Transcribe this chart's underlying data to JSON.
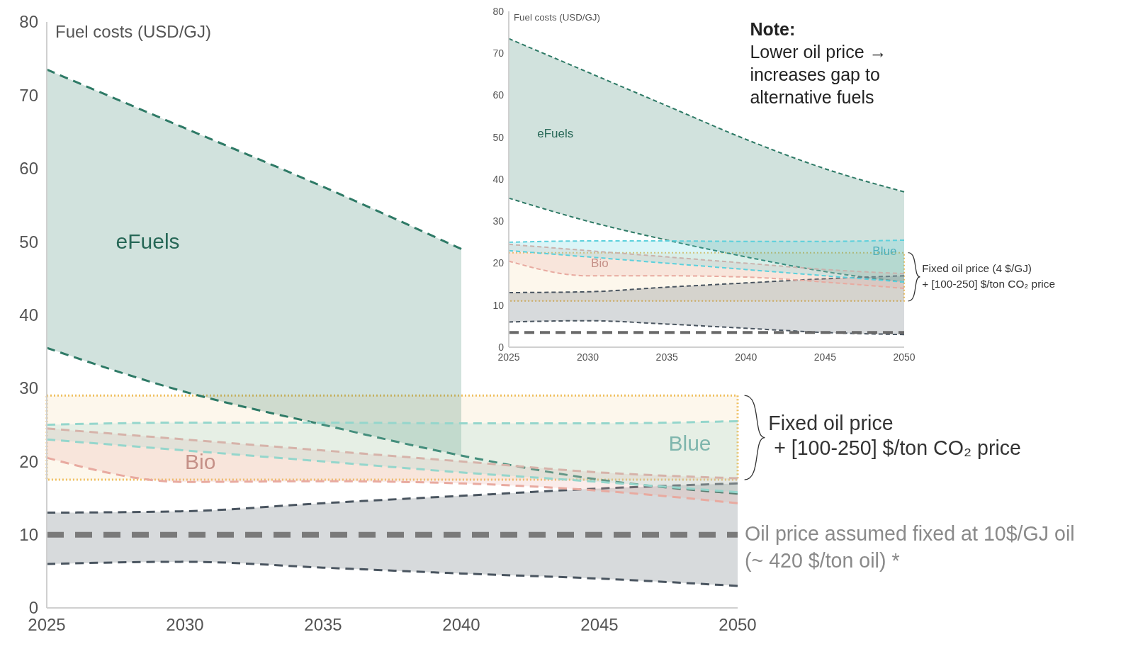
{
  "chart_data": [
    {
      "type": "line",
      "ylabel": "Fuel costs (USD/GJ)",
      "x": [
        2025,
        2030,
        2035,
        2040,
        2045,
        2050
      ],
      "xlim": [
        2025,
        2050
      ],
      "xticks": [
        2025,
        2030,
        2035,
        2040,
        2045,
        2050
      ],
      "ylim": [
        0,
        80
      ],
      "yticks": [
        0,
        10,
        20,
        30,
        40,
        50,
        60,
        70,
        80
      ],
      "line_style": "dashed",
      "series": [
        {
          "name": "eFuels",
          "color": "#2e7a66",
          "values": [
            73.5,
            65.5,
            57.5,
            49,
            null,
            null
          ],
          "lower": [
            35.5,
            29.5,
            25,
            20.8,
            null,
            null
          ],
          "upper": [
            73.5,
            65.5,
            57.5,
            49,
            null,
            null
          ]
        },
        {
          "color": "#2e7a66",
          "values": [
            35.5,
            29.5,
            25,
            20.8,
            17.5,
            15.6
          ]
        },
        {
          "color": "#4a5560",
          "values": [
            13,
            13.2,
            14.3,
            15.3,
            16.3,
            17
          ],
          "lower": [
            6,
            6.3,
            5.5,
            4.7,
            4,
            3
          ],
          "upper": [
            13,
            13.2,
            14.3,
            15.3,
            16.3,
            17
          ]
        },
        {
          "color": "#4a5560",
          "values": [
            6,
            6.3,
            5.5,
            4.7,
            4,
            3
          ]
        },
        {
          "name": "Bio",
          "color": "#e8aaa0",
          "values": [
            24.5,
            23,
            21.5,
            20,
            18.5,
            17.7
          ],
          "lower": [
            20.5,
            17.2,
            17.3,
            17,
            16,
            14.3
          ],
          "upper": [
            24.5,
            23,
            21.5,
            20,
            18.5,
            17.7
          ]
        },
        {
          "color": "#e8aaa0",
          "values": [
            20.5,
            17.2,
            17.3,
            17,
            16,
            14.3
          ]
        },
        {
          "name": "Blue",
          "color": "#95d6cc",
          "values": [
            25,
            25.3,
            25.3,
            25.2,
            25.2,
            25.5
          ],
          "lower": [
            23,
            21.5,
            20,
            18.5,
            17.2,
            15.8
          ],
          "upper": [
            25,
            25.3,
            25.3,
            25.2,
            25.2,
            25.5
          ]
        },
        {
          "color": "#95d6cc",
          "values": [
            23,
            21.5,
            20,
            18.5,
            17.2,
            15.8
          ]
        }
      ],
      "ref_lines": [
        {
          "axis": "y",
          "value": 10,
          "label": "Oil price assumed fixed at 10$/GJ oil\n(~ 420 $/ton oil) *",
          "color": "#7a7a7a",
          "line_style": "dashed"
        }
      ],
      "bands": [
        {
          "axis": "y",
          "from": 17.5,
          "to": 29,
          "label": "Fixed oil price\n + [100-250] $/ton CO₂ price",
          "color": "#f0c060"
        }
      ]
    },
    {
      "type": "line",
      "ylabel": "Fuel costs (USD/GJ)",
      "x": [
        2025,
        2030,
        2035,
        2040,
        2045,
        2050
      ],
      "xlim": [
        2025,
        2050
      ],
      "xticks": [
        2025,
        2030,
        2035,
        2040,
        2045,
        2050
      ],
      "ylim": [
        0,
        80
      ],
      "yticks": [
        0,
        10,
        20,
        30,
        40,
        50,
        60,
        70,
        80
      ],
      "line_style": "dashed",
      "series": [
        {
          "name": "eFuels",
          "color": "#2e7a66",
          "values": [
            73.5,
            65.5,
            57.5,
            49.5,
            42.5,
            37
          ],
          "lower": [
            35.5,
            30,
            25.5,
            21.5,
            18,
            15.5
          ],
          "upper": [
            73.5,
            65.5,
            57.5,
            49.5,
            42.5,
            37
          ]
        },
        {
          "color": "#2e7a66",
          "values": [
            35.5,
            30,
            25.5,
            21.5,
            18,
            15.5
          ]
        },
        {
          "color": "#4a5560",
          "values": [
            13,
            13.2,
            14.3,
            15.3,
            16.3,
            17
          ],
          "lower": [
            6,
            6.3,
            5.5,
            4.5,
            3.5,
            3
          ],
          "upper": [
            13,
            13.2,
            14.3,
            15.3,
            16.3,
            17
          ]
        },
        {
          "color": "#4a5560",
          "values": [
            6,
            6.3,
            5.5,
            4.5,
            3.5,
            3
          ]
        },
        {
          "name": "Bio",
          "color": "#e8aaa0",
          "values": [
            24.5,
            23,
            21.5,
            20,
            18.5,
            17.5
          ],
          "lower": [
            20.5,
            17,
            17,
            16.7,
            15.5,
            14
          ],
          "upper": [
            24.5,
            23,
            21.5,
            20,
            18.5,
            17.5
          ]
        },
        {
          "color": "#e8aaa0",
          "values": [
            20.5,
            17,
            17,
            16.7,
            15.5,
            14
          ]
        },
        {
          "name": "Blue",
          "color": "#5cd0dc",
          "values": [
            25,
            25.3,
            25.3,
            25.2,
            25.2,
            25.5
          ],
          "lower": [
            23,
            21.5,
            20,
            18.5,
            17,
            15.5
          ],
          "upper": [
            25,
            25.3,
            25.3,
            25.2,
            25.2,
            25.5
          ]
        },
        {
          "color": "#5cd0dc",
          "values": [
            23,
            21.5,
            20,
            18.5,
            17,
            15.5
          ]
        }
      ],
      "ref_lines": [
        {
          "axis": "y",
          "value": 3.5,
          "color": "#6a6a6a",
          "line_style": "dashed"
        }
      ],
      "bands": [
        {
          "axis": "y",
          "from": 11,
          "to": 22.5,
          "label": "Fixed oil price (4 $/GJ)\n+ [100-250] $/ton CO₂ price",
          "color": "#f0c060"
        }
      ],
      "annotations": [
        "Note:\nLower oil price →\nincreases gap to\nalternative fuels"
      ]
    }
  ]
}
